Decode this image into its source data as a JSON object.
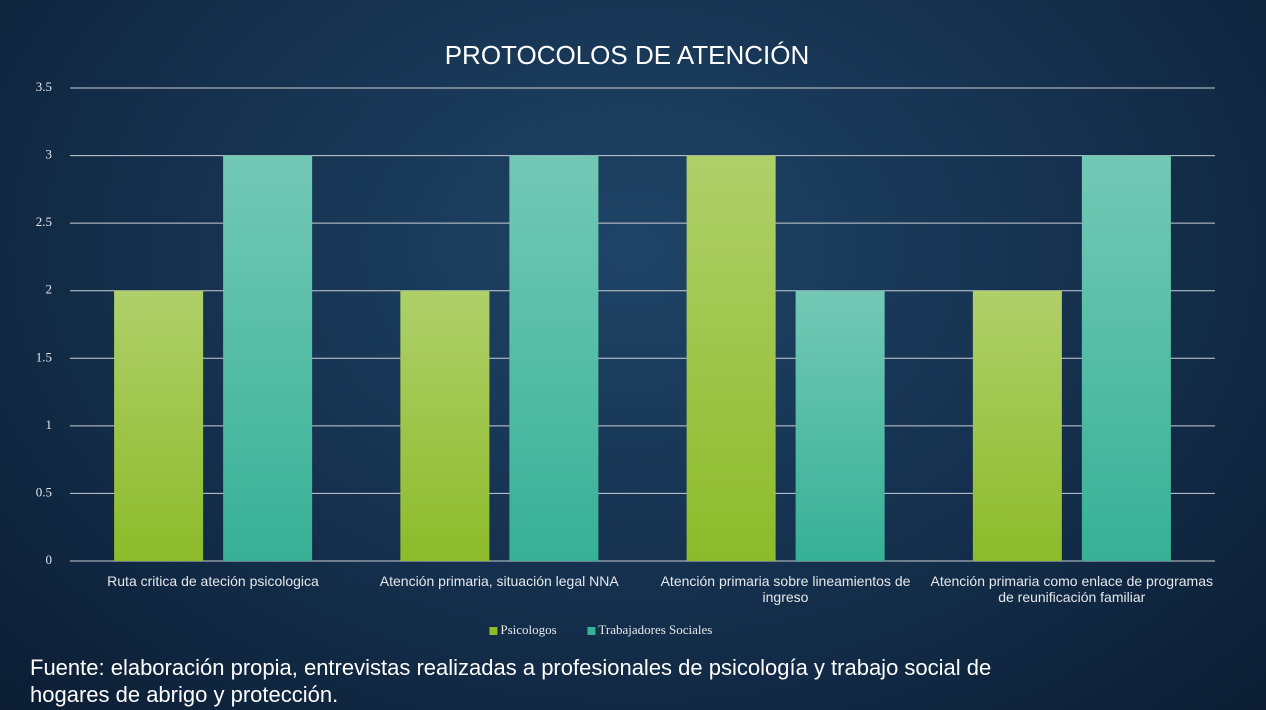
{
  "chart_data": {
    "type": "bar",
    "title": "PROTOCOLOS DE ATENCIÓN",
    "categories": [
      "Ruta critica de ateción psicologica",
      "Atención primaria, situación legal NNA",
      "Atención primaria sobre lineamientos de ingreso",
      "Atención primaria como enlace de programas de reunificación familiar"
    ],
    "series": [
      {
        "name": "Psicologos",
        "color": "#8dbb2a",
        "values": [
          2,
          2,
          3,
          2
        ]
      },
      {
        "name": "Trabajadores Sociales",
        "color": "#37b196",
        "values": [
          3,
          3,
          2,
          3
        ]
      }
    ],
    "ylim": [
      0,
      3.5
    ],
    "yticks": [
      0,
      0.5,
      1,
      1.5,
      2,
      2.5,
      3,
      3.5
    ],
    "grid": true,
    "legend": "bottom",
    "source": "Fuente: elaboración propia, entrevistas realizadas a profesionales de psicología y trabajo social de hogares de abrigo y protección."
  }
}
